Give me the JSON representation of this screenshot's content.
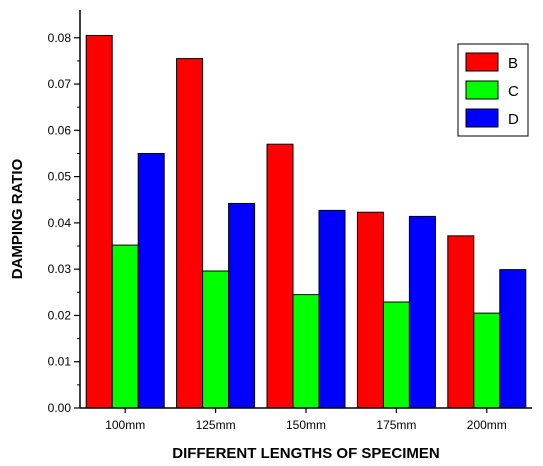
{
  "chart_data": {
    "type": "bar",
    "title": "",
    "xlabel": "DIFFERENT LENGTHS OF SPECIMEN",
    "ylabel": "DAMPING RATIO",
    "categories": [
      "100mm",
      "125mm",
      "150mm",
      "175mm",
      "200mm"
    ],
    "series": [
      {
        "name": "B",
        "color": "#ff0000",
        "values": [
          0.0805,
          0.0755,
          0.057,
          0.0423,
          0.0372
        ]
      },
      {
        "name": "C",
        "color": "#00ff00",
        "values": [
          0.0352,
          0.0296,
          0.0245,
          0.0229,
          0.0205
        ]
      },
      {
        "name": "D",
        "color": "#0000ff",
        "values": [
          0.055,
          0.0442,
          0.0427,
          0.0414,
          0.0299
        ]
      }
    ],
    "ylim": [
      0.0,
      0.086
    ],
    "yticks": [
      "0.00",
      "0.01",
      "0.02",
      "0.03",
      "0.04",
      "0.05",
      "0.06",
      "0.07",
      "0.08"
    ],
    "ytick_values": [
      0.0,
      0.01,
      0.02,
      0.03,
      0.04,
      0.05,
      0.06,
      0.07,
      0.08
    ],
    "grid": false,
    "legend_position": "top-right"
  }
}
